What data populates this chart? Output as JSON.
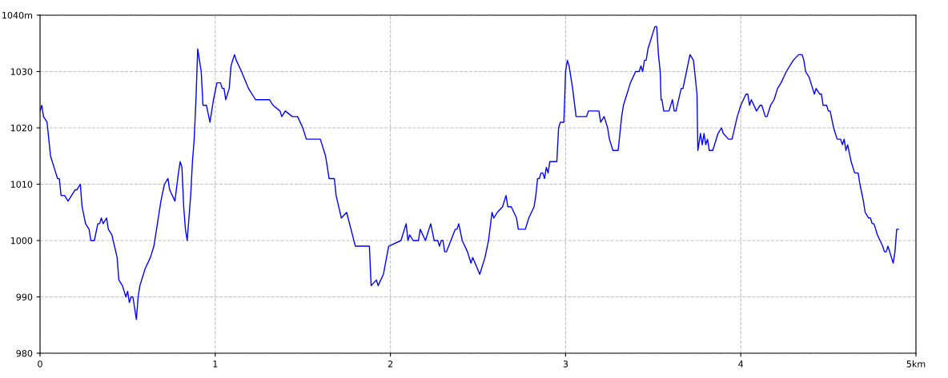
{
  "chart_data": {
    "type": "line",
    "xlim": [
      0,
      5
    ],
    "ylim": [
      980,
      1040
    ],
    "xticks": [
      0,
      1,
      2,
      3,
      4,
      {
        "value": 5,
        "label": "5km"
      }
    ],
    "yticks": [
      980,
      990,
      1000,
      1010,
      1020,
      1030,
      {
        "value": 1040,
        "label": "1040m"
      }
    ],
    "grid": true,
    "marker": "none",
    "line_style": "solid",
    "series": [
      {
        "color": "#0000ff",
        "x": [
          0,
          0.01,
          0.02,
          0.04,
          0.05,
          0.06,
          0.08,
          0.1,
          0.11,
          0.12,
          0.14,
          0.16,
          0.18,
          0.2,
          0.21,
          0.23,
          0.24,
          0.26,
          0.28,
          0.29,
          0.31,
          0.33,
          0.34,
          0.35,
          0.36,
          0.38,
          0.39,
          0.41,
          0.44,
          0.45,
          0.47,
          0.49,
          0.5,
          0.51,
          0.52,
          0.53,
          0.55,
          0.56,
          0.57,
          0.6,
          0.63,
          0.65,
          0.67,
          0.69,
          0.71,
          0.73,
          0.74,
          0.77,
          0.79,
          0.8,
          0.81,
          0.82,
          0.83,
          0.84,
          0.86,
          0.87,
          0.88,
          0.89,
          0.9,
          0.905,
          0.92,
          0.93,
          0.95,
          0.97,
          0.99,
          1.01,
          1.03,
          1.04,
          1.05,
          1.06,
          1.08,
          1.09,
          1.11,
          1.12,
          1.15,
          1.19,
          1.23,
          1.31,
          1.33,
          1.37,
          1.38,
          1.4,
          1.44,
          1.47,
          1.5,
          1.52,
          1.6,
          1.63,
          1.65,
          1.68,
          1.69,
          1.72,
          1.75,
          1.8,
          1.88,
          1.89,
          1.92,
          1.93,
          1.96,
          1.99,
          2.06,
          2.09,
          2.1,
          2.11,
          2.13,
          2.16,
          2.17,
          2.2,
          2.23,
          2.25,
          2.27,
          2.28,
          2.29,
          2.3,
          2.31,
          2.32,
          2.37,
          2.38,
          2.39,
          2.41,
          2.44,
          2.46,
          2.47,
          2.51,
          2.54,
          2.56,
          2.58,
          2.59,
          2.61,
          2.64,
          2.66,
          2.67,
          2.69,
          2.72,
          2.73,
          2.77,
          2.79,
          2.82,
          2.83,
          2.84,
          2.85,
          2.86,
          2.87,
          2.88,
          2.89,
          2.9,
          2.91,
          2.95,
          2.96,
          2.97,
          2.99,
          3.0,
          3.01,
          3.02,
          3.04,
          3.06,
          3.12,
          3.13,
          3.19,
          3.2,
          3.22,
          3.24,
          3.25,
          3.27,
          3.3,
          3.32,
          3.33,
          3.35,
          3.37,
          3.4,
          3.42,
          3.43,
          3.44,
          3.45,
          3.46,
          3.47,
          3.5,
          3.51,
          3.52,
          3.53,
          3.54,
          3.545,
          3.55,
          3.56,
          3.59,
          3.61,
          3.62,
          3.63,
          3.66,
          3.67,
          3.69,
          3.71,
          3.73,
          3.74,
          3.75,
          3.755,
          3.77,
          3.78,
          3.79,
          3.8,
          3.81,
          3.82,
          3.84,
          3.87,
          3.89,
          3.9,
          3.93,
          3.95,
          3.98,
          4.0,
          4.03,
          4.04,
          4.05,
          4.06,
          4.09,
          4.11,
          4.12,
          4.14,
          4.15,
          4.17,
          4.19,
          4.21,
          4.23,
          4.26,
          4.28,
          4.3,
          4.33,
          4.35,
          4.36,
          4.37,
          4.39,
          4.41,
          4.42,
          4.43,
          4.45,
          4.46,
          4.47,
          4.49,
          4.5,
          4.51,
          4.53,
          4.55,
          4.57,
          4.58,
          4.59,
          4.6,
          4.61,
          4.63,
          4.65,
          4.67,
          4.68,
          4.7,
          4.71,
          4.73,
          4.74,
          4.75,
          4.76,
          4.77,
          4.78,
          4.81,
          4.82,
          4.83,
          4.84,
          4.86,
          4.87,
          4.88,
          4.89,
          4.9
        ],
        "values": [
          1023,
          1024,
          1022,
          1021,
          1018,
          1015,
          1013,
          1011,
          1011,
          1008,
          1008,
          1007,
          1008,
          1009,
          1009,
          1010,
          1006,
          1003,
          1002,
          1000,
          1000,
          1003,
          1003,
          1004,
          1003,
          1004,
          1002,
          1001,
          997,
          993,
          992,
          990,
          991,
          989,
          990,
          990,
          986,
          990,
          992,
          995,
          997,
          999,
          1003,
          1007,
          1010,
          1011,
          1009,
          1007,
          1012,
          1014,
          1013,
          1006,
          1002,
          1000,
          1008,
          1014,
          1018,
          1025,
          1034,
          1033,
          1030,
          1024,
          1024,
          1021,
          1025,
          1028,
          1028,
          1027,
          1027,
          1025,
          1027,
          1031,
          1033,
          1032,
          1030,
          1027,
          1025,
          1025,
          1024,
          1023,
          1022,
          1023,
          1022,
          1022,
          1020,
          1018,
          1018,
          1015,
          1011,
          1011,
          1008,
          1004,
          1005,
          999,
          999,
          992,
          993,
          992,
          994,
          999,
          1000,
          1003,
          1000,
          1001,
          1000,
          1000,
          1002,
          1000,
          1003,
          1000,
          1000,
          999,
          1000,
          1000,
          998,
          998,
          1002,
          1002,
          1003,
          1000,
          998,
          996,
          997,
          994,
          997,
          1000,
          1005,
          1004,
          1005,
          1006,
          1008,
          1006,
          1006,
          1004,
          1002,
          1002,
          1004,
          1006,
          1008,
          1011,
          1011,
          1012,
          1012,
          1011,
          1013,
          1012,
          1014,
          1014,
          1020,
          1021,
          1021,
          1030,
          1032,
          1031,
          1027,
          1022,
          1022,
          1023,
          1023,
          1021,
          1022,
          1020,
          1018,
          1016,
          1016,
          1022,
          1024,
          1026,
          1028,
          1030,
          1030,
          1031,
          1030,
          1032,
          1032,
          1034,
          1037,
          1038,
          1038,
          1033,
          1030,
          1025,
          1025,
          1023,
          1023,
          1025,
          1023,
          1023,
          1027,
          1027,
          1030,
          1033,
          1032,
          1029,
          1026,
          1016,
          1019,
          1017,
          1019,
          1017,
          1018,
          1016,
          1016,
          1019,
          1020,
          1019,
          1018,
          1018,
          1022,
          1024,
          1026,
          1026,
          1024,
          1025,
          1023,
          1024,
          1024,
          1022,
          1022,
          1024,
          1025,
          1027,
          1028,
          1030,
          1031,
          1032,
          1033,
          1033,
          1032,
          1030,
          1029,
          1027,
          1026,
          1027,
          1026,
          1026,
          1024,
          1024,
          1023,
          1023,
          1020,
          1018,
          1018,
          1017,
          1018,
          1016,
          1017,
          1014,
          1012,
          1012,
          1010,
          1007,
          1005,
          1004,
          1004,
          1003,
          1003,
          1002,
          1001,
          999,
          998,
          998,
          999,
          997,
          996,
          998,
          1002,
          1002
        ]
      }
    ]
  }
}
